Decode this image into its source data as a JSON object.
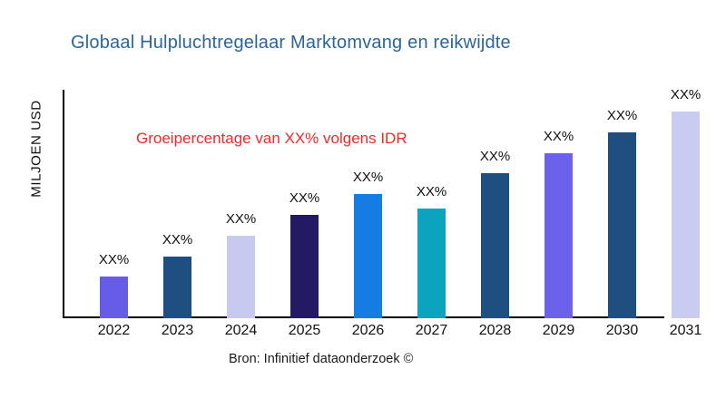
{
  "page": {
    "background": "#ffffff"
  },
  "header": {
    "title": "Globaal Hulpluchtregelaar Marktomvang en reikwijdte",
    "title_color": "#2d6596"
  },
  "y_axis": {
    "label": "MILJOEN USD"
  },
  "annotation": {
    "text": "Groeipercentage van XX% volgens IDR",
    "color": "#ec2b2f"
  },
  "footer": {
    "source": "Bron: Infinitief dataonderzoek ©"
  },
  "chart_data": {
    "type": "bar",
    "title": "Globaal Hulpluchtregelaar Marktomvang en reikwijdte",
    "xlabel": "",
    "ylabel": "MILJOEN USD",
    "categories": [
      "2022",
      "2023",
      "2024",
      "2025",
      "2026",
      "2027",
      "2028",
      "2029",
      "2030",
      "2031"
    ],
    "series": [
      {
        "values": [
          20,
          30,
          40,
          50,
          60,
          53,
          70,
          80,
          90,
          100
        ],
        "value_labels": [
          "XX%",
          "XX%",
          "XX%",
          "XX%",
          "XX%",
          "XX%",
          "XX%",
          "XX%",
          "XX%",
          "XX%"
        ],
        "colors": [
          "#675ce8",
          "#1f4e80",
          "#c7c9ef",
          "#241a63",
          "#147ce3",
          "#0ca3bf",
          "#1f4e80",
          "#6b61ea",
          "#1f4e80",
          "#c9cbf0"
        ]
      }
    ],
    "ylim": [
      0,
      105
    ],
    "grid": false,
    "legend_position": "none",
    "axis_color": "#000000",
    "annotation": "Groeipercentage van XX% volgens IDR",
    "source": "Bron: Infinitief dataonderzoek ©"
  }
}
